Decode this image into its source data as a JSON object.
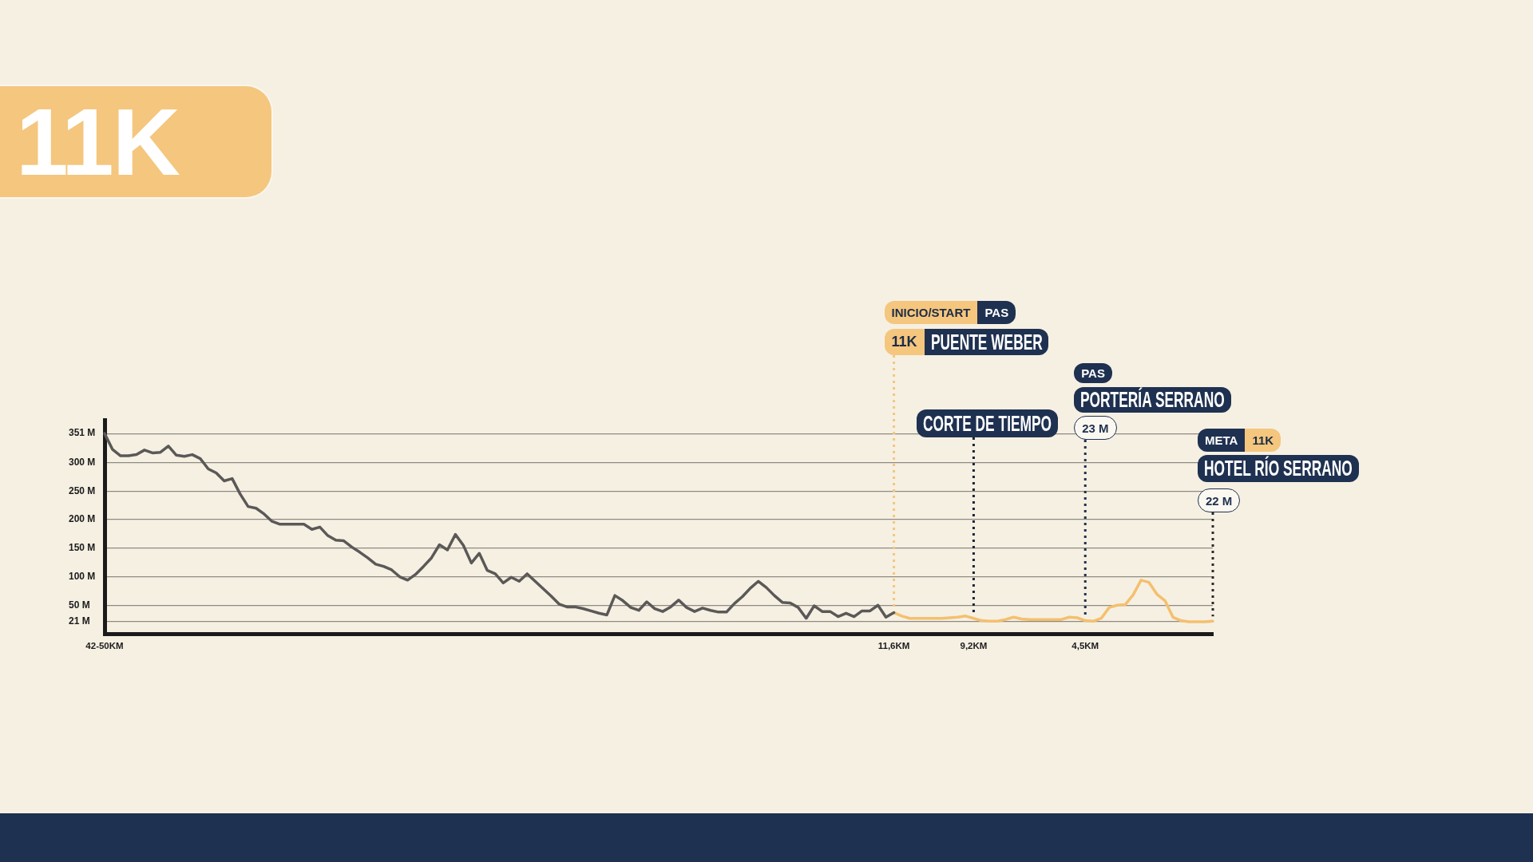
{
  "chart_data": {
    "type": "line",
    "title": "11K",
    "categories": [
      "42-50KM",
      null,
      null,
      null,
      null,
      null,
      null,
      null,
      null,
      null,
      null,
      null,
      null,
      null,
      null,
      null,
      null,
      null,
      null,
      null,
      null,
      null,
      null,
      null,
      null,
      null,
      null,
      null,
      null,
      null,
      null,
      null,
      null,
      null,
      null,
      null,
      null,
      null,
      null,
      null,
      null,
      null,
      null,
      null,
      null,
      null,
      null,
      null,
      null,
      null,
      null,
      null,
      null,
      null,
      null,
      null,
      null,
      null,
      null,
      null,
      null,
      null,
      null,
      null,
      null,
      null,
      null,
      null,
      null,
      null,
      null,
      null,
      null,
      null,
      null,
      null,
      null,
      null,
      null,
      null,
      null,
      null,
      null,
      null,
      null,
      null,
      null,
      null,
      null,
      null,
      null,
      null,
      null,
      null,
      null,
      null,
      null,
      null,
      null,
      "11,6KM",
      null,
      null,
      null,
      null,
      null,
      null,
      null,
      null,
      null,
      "9,2KM",
      null,
      null,
      null,
      null,
      null,
      null,
      null,
      null,
      null,
      null,
      null,
      null,
      null,
      "4,5KM",
      null,
      null,
      null,
      null,
      null,
      null,
      null,
      null,
      null,
      null,
      null,
      null,
      null,
      null,
      null,
      null
    ],
    "series": [
      {
        "color": "#5b5957",
        "values": [
          351,
          323,
          312,
          312,
          314,
          322,
          317,
          318,
          329,
          313,
          311,
          314,
          307,
          289,
          282,
          268,
          272,
          245,
          223,
          220,
          210,
          197,
          192,
          192,
          192,
          192,
          183,
          187,
          172,
          164,
          163,
          152,
          143,
          133,
          122,
          118,
          112,
          100,
          94,
          104,
          118,
          133,
          156,
          147,
          174,
          155,
          124,
          141,
          111,
          105,
          89,
          99,
          92,
          105,
          92,
          79,
          66,
          52,
          47,
          47,
          44,
          40,
          36,
          33,
          67,
          58,
          46,
          41,
          56,
          44,
          39,
          47,
          59,
          46,
          39,
          45,
          41,
          38,
          38,
          53,
          65,
          80,
          92,
          81,
          67,
          55,
          54,
          46,
          27,
          49,
          39,
          39,
          30,
          36,
          30,
          40,
          40,
          50,
          29,
          37,
          null,
          null,
          null,
          null,
          null,
          null,
          null,
          null,
          null,
          null,
          null,
          null,
          null,
          null,
          null,
          null,
          null,
          null,
          null,
          null,
          null,
          null,
          null,
          null,
          null,
          null,
          null,
          null,
          null,
          null,
          null,
          null,
          null,
          null,
          null,
          null,
          null,
          null,
          null,
          null
        ]
      },
      {
        "color": "#f4c06e",
        "values": [
          null,
          null,
          null,
          null,
          null,
          null,
          null,
          null,
          null,
          null,
          null,
          null,
          null,
          null,
          null,
          null,
          null,
          null,
          null,
          null,
          null,
          null,
          null,
          null,
          null,
          null,
          null,
          null,
          null,
          null,
          null,
          null,
          null,
          null,
          null,
          null,
          null,
          null,
          null,
          null,
          null,
          null,
          null,
          null,
          null,
          null,
          null,
          null,
          null,
          null,
          null,
          null,
          null,
          null,
          null,
          null,
          null,
          null,
          null,
          null,
          null,
          null,
          null,
          null,
          null,
          null,
          null,
          null,
          null,
          null,
          null,
          null,
          null,
          null,
          null,
          null,
          null,
          null,
          null,
          null,
          null,
          null,
          null,
          null,
          null,
          null,
          null,
          null,
          null,
          null,
          null,
          null,
          null,
          null,
          null,
          null,
          null,
          null,
          null,
          37,
          31,
          27,
          27,
          27,
          27,
          27,
          28,
          29,
          31,
          27,
          23,
          22,
          22,
          25,
          29,
          26,
          25,
          25,
          25,
          25,
          25,
          29,
          28,
          23,
          22,
          27,
          46,
          50,
          51,
          68,
          94,
          90,
          69,
          58,
          29,
          23,
          21,
          21,
          21,
          22
        ]
      }
    ],
    "ylim": [
      0,
      375
    ],
    "yticks": [
      {
        "value": 21,
        "label": "21 M"
      },
      {
        "value": 50,
        "label": "50 M"
      },
      {
        "value": 100,
        "label": "100 M"
      },
      {
        "value": 150,
        "label": "150 M"
      },
      {
        "value": 200,
        "label": "200 M"
      },
      {
        "value": 250,
        "label": "250 M"
      },
      {
        "value": 300,
        "label": "300 M"
      },
      {
        "value": 351,
        "label": "351 M"
      }
    ],
    "grid": "y",
    "marker": "none",
    "ref_lines": [
      {
        "axis": "x",
        "value": "11,6KM",
        "label": "PUENTE WEBER",
        "color": "#f4c67e",
        "line_style": "dotted"
      },
      {
        "axis": "x",
        "value": "9,2KM",
        "label": "CORTE DE TIEMPO",
        "color": "#1b2536",
        "line_style": "dotted"
      },
      {
        "axis": "x",
        "value": "4,5KM",
        "label": "PORTERÍA SERRANO",
        "color": "#1f3150",
        "line_style": "dotted"
      }
    ],
    "annotations": [
      "INICIO/START",
      "PAS",
      "11K",
      "PAS",
      "23 M",
      "META",
      "11K",
      "HOTEL RÍO SERRANO",
      "22 M"
    ]
  }
}
